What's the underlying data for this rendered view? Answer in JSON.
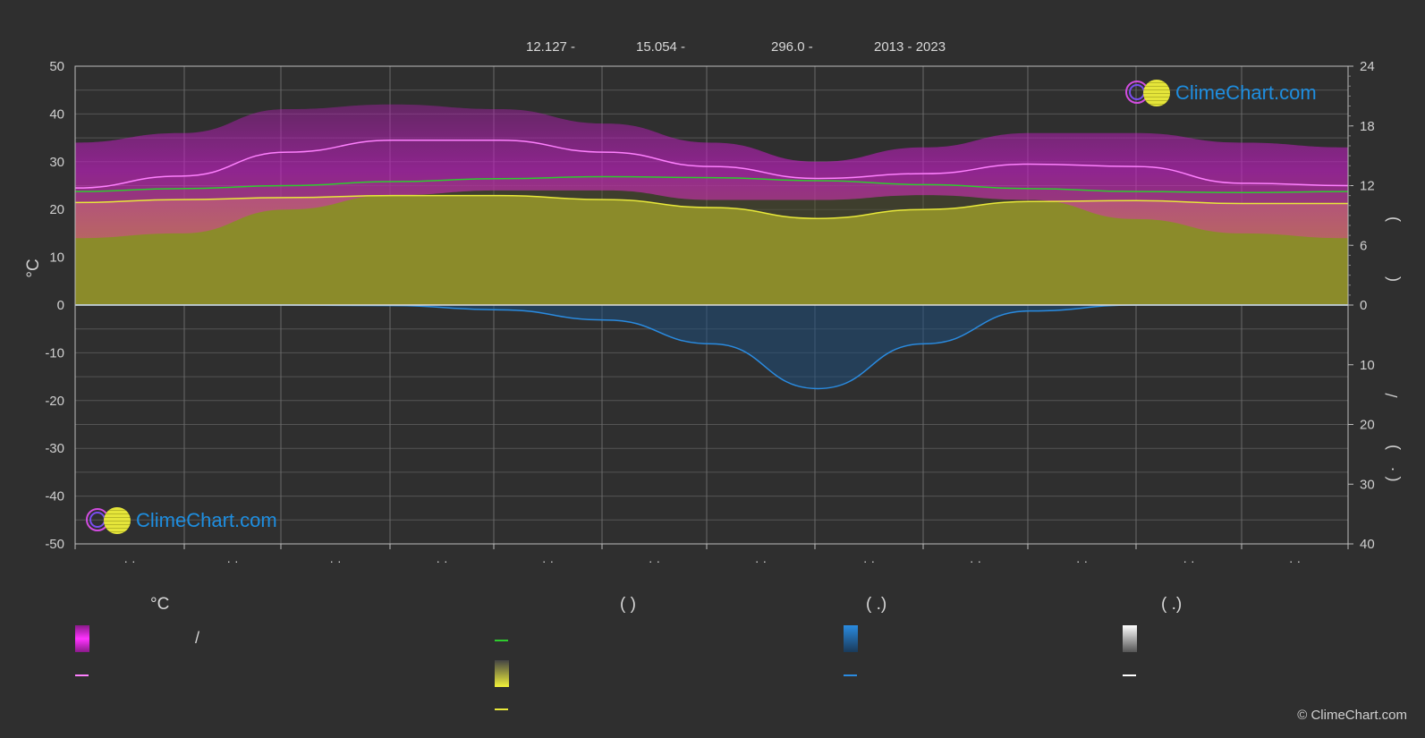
{
  "header": {
    "lat": "12.127 -",
    "lon": "15.054 -",
    "elev": "296.0 -",
    "years": "2013 - 2023"
  },
  "legend": {
    "col1_head": "°C",
    "col2_head": "(          )",
    "col3_head": "(   .)",
    "col4_head": "(   .)",
    "slash": "/"
  },
  "copyright": "© ClimeChart.com",
  "logo_text": "ClimeChart.com",
  "colors": {
    "background": "#2f2f2f",
    "temp_band": "#c61fc6",
    "daily_high": "#ff80ff",
    "daylight": "#2ecc2e",
    "sunshine": "#e8e83a",
    "rain": "#2a8be0",
    "snow": "#ffffff"
  },
  "chart_data": {
    "type": "line",
    "left_axis": {
      "label": "°C",
      "min": -50,
      "max": 50,
      "ticks": [
        50,
        40,
        30,
        20,
        10,
        0,
        -10,
        -20,
        -30,
        -40,
        -50
      ]
    },
    "right_axis_top": {
      "min": 0,
      "max": 24,
      "ticks": [
        24,
        18,
        12,
        6,
        0
      ]
    },
    "right_axis_bottom": {
      "min": 0,
      "max": 40,
      "ticks": [
        0,
        10,
        20,
        30,
        40
      ]
    },
    "right_axis_labels": [
      ")",
      "(",
      "/",
      ")",
      "( ·"
    ],
    "month_labels": [
      "· ·",
      "· ·",
      "· ·",
      "· ·",
      "· ·",
      "· ·",
      "· ·",
      "· ·",
      "· ·",
      "· ·",
      "· ·",
      "· ·"
    ],
    "x": [
      0,
      1,
      2,
      3,
      4,
      5,
      6,
      7,
      8,
      9,
      10,
      11,
      12
    ],
    "series": [
      {
        "key": "avg_high",
        "values": [
          24.5,
          27,
          32,
          34.5,
          34.5,
          32,
          29,
          26.5,
          27.5,
          29.5,
          29,
          25.5,
          25
        ]
      },
      {
        "key": "daylight_hours",
        "values": [
          11.4,
          11.7,
          12.0,
          12.4,
          12.7,
          12.9,
          12.8,
          12.5,
          12.1,
          11.7,
          11.4,
          11.3,
          11.4
        ]
      },
      {
        "key": "sunshine_hours",
        "values": [
          10.3,
          10.6,
          10.8,
          11.0,
          11.0,
          10.6,
          9.8,
          8.7,
          9.6,
          10.4,
          10.5,
          10.2,
          10.2
        ]
      },
      {
        "key": "avg_precip_mm",
        "values": [
          0,
          0,
          0,
          0.1,
          0.8,
          2.5,
          6.5,
          14,
          6.5,
          1,
          0,
          0,
          0
        ]
      },
      {
        "key": "temp_band_max",
        "values": [
          34,
          36,
          41,
          42,
          41,
          38,
          34,
          30,
          33,
          36,
          36,
          34,
          33
        ]
      },
      {
        "key": "temp_band_min",
        "values": [
          14,
          15,
          20,
          23,
          24,
          24,
          22,
          22,
          23,
          22,
          18,
          15,
          14
        ]
      }
    ]
  }
}
